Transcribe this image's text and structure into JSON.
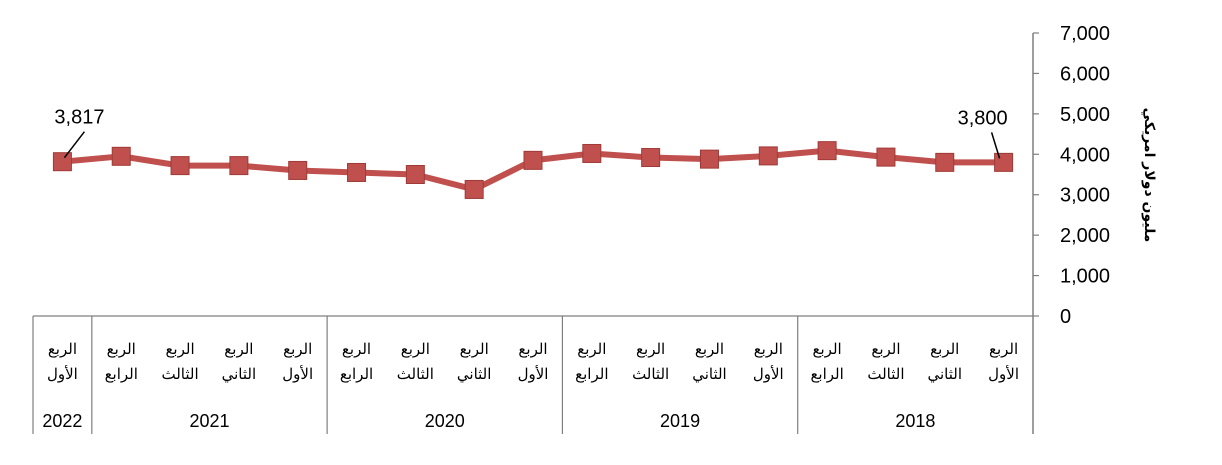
{
  "chart_data": {
    "type": "line",
    "ylabel": "مليون دولار امريكي",
    "ylim": [
      0,
      7000
    ],
    "yticks": [
      "7,000",
      "6,000",
      "5,000",
      "4,000",
      "3,000",
      "2,000",
      "1,000",
      "0"
    ],
    "grid": false,
    "legend": "none",
    "x_direction": "right-to-left",
    "line_color": "#c0504d",
    "marker": "square",
    "categories": [
      {
        "year": "2018",
        "quarter": "الربع الأول",
        "l1": "الربع",
        "l2": "الأول"
      },
      {
        "year": "2018",
        "quarter": "الربع الثاني",
        "l1": "الربع",
        "l2": "الثاني"
      },
      {
        "year": "2018",
        "quarter": "الربع الثالث",
        "l1": "الربع",
        "l2": "الثالث"
      },
      {
        "year": "2018",
        "quarter": "الربع الرابع",
        "l1": "الربع",
        "l2": "الرابع"
      },
      {
        "year": "2019",
        "quarter": "الربع الأول",
        "l1": "الربع",
        "l2": "الأول"
      },
      {
        "year": "2019",
        "quarter": "الربع الثاني",
        "l1": "الربع",
        "l2": "الثاني"
      },
      {
        "year": "2019",
        "quarter": "الربع الثالث",
        "l1": "الربع",
        "l2": "الثالث"
      },
      {
        "year": "2019",
        "quarter": "الربع الرابع",
        "l1": "الربع",
        "l2": "الرابع"
      },
      {
        "year": "2020",
        "quarter": "الربع الأول",
        "l1": "الربع",
        "l2": "الأول"
      },
      {
        "year": "2020",
        "quarter": "الربع الثاني",
        "l1": "الربع",
        "l2": "الثاني"
      },
      {
        "year": "2020",
        "quarter": "الربع الثالث",
        "l1": "الربع",
        "l2": "الثالث"
      },
      {
        "year": "2020",
        "quarter": "الربع الرابع",
        "l1": "الربع",
        "l2": "الرابع"
      },
      {
        "year": "2021",
        "quarter": "الربع الأول",
        "l1": "الربع",
        "l2": "الأول"
      },
      {
        "year": "2021",
        "quarter": "الربع الثاني",
        "l1": "الربع",
        "l2": "الثاني"
      },
      {
        "year": "2021",
        "quarter": "الربع الثالث",
        "l1": "الربع",
        "l2": "الثالث"
      },
      {
        "year": "2021",
        "quarter": "الربع الرابع",
        "l1": "الربع",
        "l2": "الرابع"
      },
      {
        "year": "2022",
        "quarter": "الربع الأول",
        "l1": "الربع",
        "l2": "الأول"
      }
    ],
    "years": [
      "2018",
      "2019",
      "2020",
      "2021",
      "2022"
    ],
    "values": [
      3800,
      3800,
      3930,
      4090,
      3960,
      3880,
      3920,
      4020,
      3850,
      3130,
      3500,
      3550,
      3600,
      3720,
      3720,
      3950,
      3817
    ],
    "data_labels": [
      {
        "index": 0,
        "text": "3,800"
      },
      {
        "index": 16,
        "text": "3,817"
      }
    ]
  }
}
